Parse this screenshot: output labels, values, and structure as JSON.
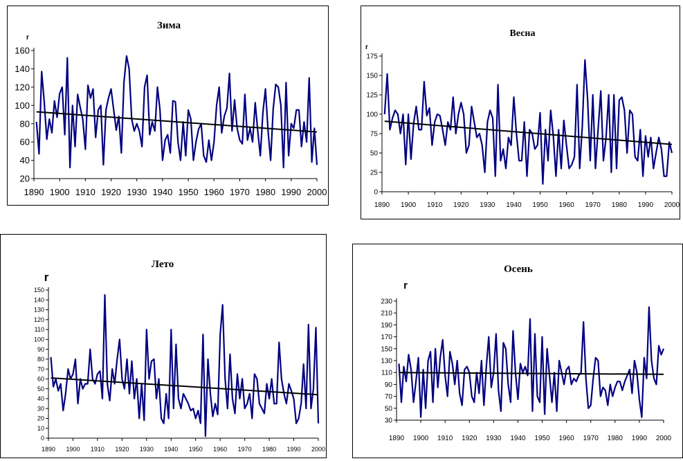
{
  "chart_data": [
    {
      "type": "line",
      "title": "Зима",
      "ylabel": "r",
      "xlim": [
        1890,
        2000
      ],
      "ylim": [
        20,
        160
      ],
      "xticks": [
        1890,
        1900,
        1910,
        1920,
        1930,
        1940,
        1950,
        1960,
        1970,
        1980,
        1990,
        2000
      ],
      "yticks": [
        20,
        40,
        60,
        80,
        100,
        120,
        140,
        160
      ],
      "series_color": "#000080",
      "trend_color": "#000000",
      "series": [
        {
          "x": [
            1891,
            1892,
            1893,
            1894,
            1895,
            1896,
            1897,
            1898,
            1899,
            1900,
            1901,
            1902,
            1903,
            1904,
            1905,
            1906,
            1907,
            1908,
            1909,
            1910,
            1911,
            1912,
            1913,
            1914,
            1915,
            1916,
            1917,
            1918,
            1919,
            1920,
            1921,
            1922,
            1923,
            1924,
            1925,
            1926,
            1927,
            1928,
            1929,
            1930,
            1931,
            1932,
            1933,
            1934,
            1935,
            1936,
            1937,
            1938,
            1939,
            1940,
            1941,
            1942,
            1943,
            1944,
            1945,
            1946,
            1947,
            1948,
            1949,
            1950,
            1951,
            1952,
            1953,
            1954,
            1955,
            1956,
            1957,
            1958,
            1959,
            1960,
            1961,
            1962,
            1963,
            1964,
            1965,
            1966,
            1967,
            1968,
            1969,
            1970,
            1971,
            1972,
            1973,
            1974,
            1975,
            1976,
            1977,
            1978,
            1979,
            1980,
            1981,
            1982,
            1983,
            1984,
            1985,
            1986,
            1987,
            1988,
            1989,
            1990,
            1991,
            1992,
            1993,
            1994,
            1995,
            1996,
            1997,
            1998,
            1999,
            2000
          ],
          "y": [
            82,
            47,
            137,
            104,
            63,
            85,
            70,
            105,
            87,
            113,
            120,
            68,
            152,
            32,
            100,
            55,
            112,
            98,
            85,
            52,
            122,
            108,
            118,
            65,
            95,
            100,
            35,
            95,
            108,
            118,
            95,
            73,
            88,
            48,
            125,
            154,
            140,
            85,
            72,
            80,
            72,
            55,
            120,
            133,
            68,
            82,
            72,
            120,
            95,
            40,
            62,
            68,
            48,
            105,
            104,
            60,
            40,
            82,
            45,
            95,
            85,
            40,
            60,
            74,
            80,
            45,
            38,
            62,
            40,
            60,
            100,
            120,
            70,
            88,
            97,
            135,
            72,
            106,
            75,
            62,
            58,
            112,
            62,
            75,
            60,
            103,
            72,
            45,
            92,
            118,
            72,
            40,
            96,
            123,
            120,
            100,
            32,
            125,
            45,
            80,
            75,
            95,
            95,
            55,
            82,
            60,
            130,
            38,
            75,
            35
          ],
          "trend": [
            93,
            71
          ]
        }
      ]
    },
    {
      "type": "line",
      "title": "Весна",
      "ylabel": "r",
      "xlim": [
        1890,
        2000
      ],
      "ylim": [
        0,
        175
      ],
      "xticks": [
        1890,
        1900,
        1910,
        1920,
        1930,
        1940,
        1950,
        1960,
        1970,
        1980,
        1990,
        2000
      ],
      "yticks": [
        0,
        25,
        50,
        75,
        100,
        125,
        150,
        175
      ],
      "series_color": "#000080",
      "trend_color": "#000000",
      "series": [
        {
          "x": [
            1891,
            1892,
            1893,
            1894,
            1895,
            1896,
            1897,
            1898,
            1899,
            1900,
            1901,
            1902,
            1903,
            1904,
            1905,
            1906,
            1907,
            1908,
            1909,
            1910,
            1911,
            1912,
            1913,
            1914,
            1915,
            1916,
            1917,
            1918,
            1919,
            1920,
            1921,
            1922,
            1923,
            1924,
            1925,
            1926,
            1927,
            1928,
            1929,
            1930,
            1931,
            1932,
            1933,
            1934,
            1935,
            1936,
            1937,
            1938,
            1939,
            1940,
            1941,
            1942,
            1943,
            1944,
            1945,
            1946,
            1947,
            1948,
            1949,
            1950,
            1951,
            1952,
            1953,
            1954,
            1955,
            1956,
            1957,
            1958,
            1959,
            1960,
            1961,
            1962,
            1963,
            1964,
            1965,
            1966,
            1967,
            1968,
            1969,
            1970,
            1971,
            1972,
            1973,
            1974,
            1975,
            1976,
            1977,
            1978,
            1979,
            1980,
            1981,
            1982,
            1983,
            1984,
            1985,
            1986,
            1987,
            1988,
            1989,
            1990,
            1991,
            1992,
            1993,
            1994,
            1995,
            1996,
            1997,
            1998,
            1999,
            2000
          ],
          "y": [
            100,
            152,
            80,
            95,
            105,
            100,
            75,
            100,
            35,
            100,
            42,
            88,
            110,
            80,
            80,
            142,
            98,
            108,
            60,
            90,
            100,
            98,
            80,
            60,
            90,
            80,
            122,
            75,
            100,
            115,
            100,
            50,
            60,
            110,
            90,
            70,
            75,
            60,
            25,
            90,
            105,
            95,
            20,
            138,
            40,
            55,
            30,
            70,
            60,
            122,
            75,
            40,
            40,
            90,
            20,
            80,
            75,
            55,
            60,
            102,
            10,
            80,
            40,
            105,
            72,
            20,
            80,
            30,
            92,
            60,
            30,
            35,
            45,
            138,
            30,
            85,
            170,
            120,
            40,
            125,
            30,
            80,
            130,
            40,
            70,
            125,
            25,
            125,
            30,
            118,
            122,
            105,
            50,
            105,
            100,
            45,
            40,
            80,
            20,
            72,
            45,
            70,
            30,
            50,
            70,
            55,
            20,
            20,
            64,
            50
          ],
          "trend": [
            91,
            61
          ]
        }
      ]
    },
    {
      "type": "line",
      "title": "Лето",
      "ylabel": "r",
      "xlim": [
        1890,
        2000
      ],
      "ylim": [
        0,
        150
      ],
      "xticks": [
        1890,
        1900,
        1910,
        1920,
        1930,
        1940,
        1950,
        1960,
        1970,
        1980,
        1990,
        2000
      ],
      "yticks": [
        0,
        10,
        20,
        30,
        40,
        50,
        60,
        70,
        80,
        90,
        100,
        110,
        120,
        130,
        140,
        150
      ],
      "series_color": "#000080",
      "trend_color": "#000000",
      "series": [
        {
          "x": [
            1891,
            1892,
            1893,
            1894,
            1895,
            1896,
            1897,
            1898,
            1899,
            1900,
            1901,
            1902,
            1903,
            1904,
            1905,
            1906,
            1907,
            1908,
            1909,
            1910,
            1911,
            1912,
            1913,
            1914,
            1915,
            1916,
            1917,
            1918,
            1919,
            1920,
            1921,
            1922,
            1923,
            1924,
            1925,
            1926,
            1927,
            1928,
            1929,
            1930,
            1931,
            1932,
            1933,
            1934,
            1935,
            1936,
            1937,
            1938,
            1939,
            1940,
            1941,
            1942,
            1943,
            1944,
            1945,
            1946,
            1947,
            1948,
            1949,
            1950,
            1951,
            1952,
            1953,
            1954,
            1955,
            1956,
            1957,
            1958,
            1959,
            1960,
            1961,
            1962,
            1963,
            1964,
            1965,
            1966,
            1967,
            1968,
            1969,
            1970,
            1971,
            1972,
            1973,
            1974,
            1975,
            1976,
            1977,
            1978,
            1979,
            1980,
            1981,
            1982,
            1983,
            1984,
            1985,
            1986,
            1987,
            1988,
            1989,
            1990,
            1991,
            1992,
            1993,
            1994,
            1995,
            1996,
            1997,
            1998,
            1999,
            2000
          ],
          "y": [
            82,
            52,
            60,
            48,
            55,
            28,
            45,
            70,
            60,
            65,
            80,
            35,
            60,
            50,
            55,
            55,
            90,
            60,
            55,
            65,
            68,
            40,
            145,
            55,
            38,
            70,
            55,
            80,
            100,
            60,
            50,
            80,
            45,
            78,
            40,
            60,
            20,
            55,
            18,
            110,
            60,
            78,
            80,
            40,
            60,
            20,
            15,
            45,
            20,
            110,
            30,
            95,
            40,
            30,
            45,
            40,
            35,
            28,
            30,
            20,
            28,
            15,
            105,
            2,
            80,
            45,
            22,
            35,
            24,
            105,
            135,
            60,
            30,
            85,
            40,
            25,
            65,
            40,
            60,
            30,
            35,
            45,
            20,
            65,
            60,
            35,
            30,
            25,
            55,
            40,
            60,
            35,
            35,
            97,
            60,
            45,
            35,
            55,
            48,
            40,
            15,
            20,
            35,
            75,
            30,
            115,
            30,
            50,
            112,
            15
          ],
          "trend": [
            61,
            44
          ]
        }
      ]
    },
    {
      "type": "line",
      "title": "Осень",
      "ylabel": "r",
      "xlim": [
        1890,
        2000
      ],
      "ylim": [
        30,
        230
      ],
      "xticks": [
        1890,
        1900,
        1910,
        1920,
        1930,
        1940,
        1950,
        1960,
        1970,
        1980,
        1990,
        2000
      ],
      "yticks": [
        30,
        50,
        70,
        90,
        110,
        130,
        150,
        170,
        190,
        210,
        230
      ],
      "series_color": "#000080",
      "trend_color": "#000000",
      "series": [
        {
          "x": [
            1891,
            1892,
            1893,
            1894,
            1895,
            1896,
            1897,
            1898,
            1899,
            1900,
            1901,
            1902,
            1903,
            1904,
            1905,
            1906,
            1907,
            1908,
            1909,
            1910,
            1911,
            1912,
            1913,
            1914,
            1915,
            1916,
            1917,
            1918,
            1919,
            1920,
            1921,
            1922,
            1923,
            1924,
            1925,
            1926,
            1927,
            1928,
            1929,
            1930,
            1931,
            1932,
            1933,
            1934,
            1935,
            1936,
            1937,
            1938,
            1939,
            1940,
            1941,
            1942,
            1943,
            1944,
            1945,
            1946,
            1947,
            1948,
            1949,
            1950,
            1951,
            1952,
            1953,
            1954,
            1955,
            1956,
            1957,
            1958,
            1959,
            1960,
            1961,
            1962,
            1963,
            1964,
            1965,
            1966,
            1967,
            1968,
            1969,
            1970,
            1971,
            1972,
            1973,
            1974,
            1975,
            1976,
            1977,
            1978,
            1979,
            1980,
            1981,
            1982,
            1983,
            1984,
            1985,
            1986,
            1987,
            1988,
            1989,
            1990,
            1991,
            1992,
            1993,
            1994,
            1995,
            1996,
            1997,
            1998,
            1999,
            2000
          ],
          "y": [
            125,
            60,
            120,
            95,
            140,
            115,
            60,
            95,
            135,
            35,
            115,
            50,
            130,
            145,
            60,
            150,
            85,
            135,
            165,
            105,
            70,
            145,
            125,
            90,
            130,
            75,
            55,
            115,
            120,
            110,
            70,
            60,
            110,
            75,
            130,
            55,
            120,
            170,
            85,
            110,
            175,
            80,
            45,
            160,
            150,
            90,
            60,
            180,
            110,
            65,
            125,
            110,
            120,
            105,
            200,
            45,
            175,
            70,
            60,
            170,
            40,
            150,
            105,
            60,
            110,
            45,
            130,
            110,
            90,
            115,
            120,
            90,
            100,
            95,
            105,
            110,
            195,
            100,
            50,
            55,
            100,
            135,
            130,
            70,
            85,
            80,
            55,
            90,
            70,
            85,
            95,
            95,
            80,
            95,
            105,
            115,
            75,
            130,
            110,
            65,
            35,
            135,
            100,
            220,
            130,
            100,
            90,
            155,
            140,
            150
          ],
          "trend": [
            110,
            107
          ]
        }
      ]
    }
  ]
}
